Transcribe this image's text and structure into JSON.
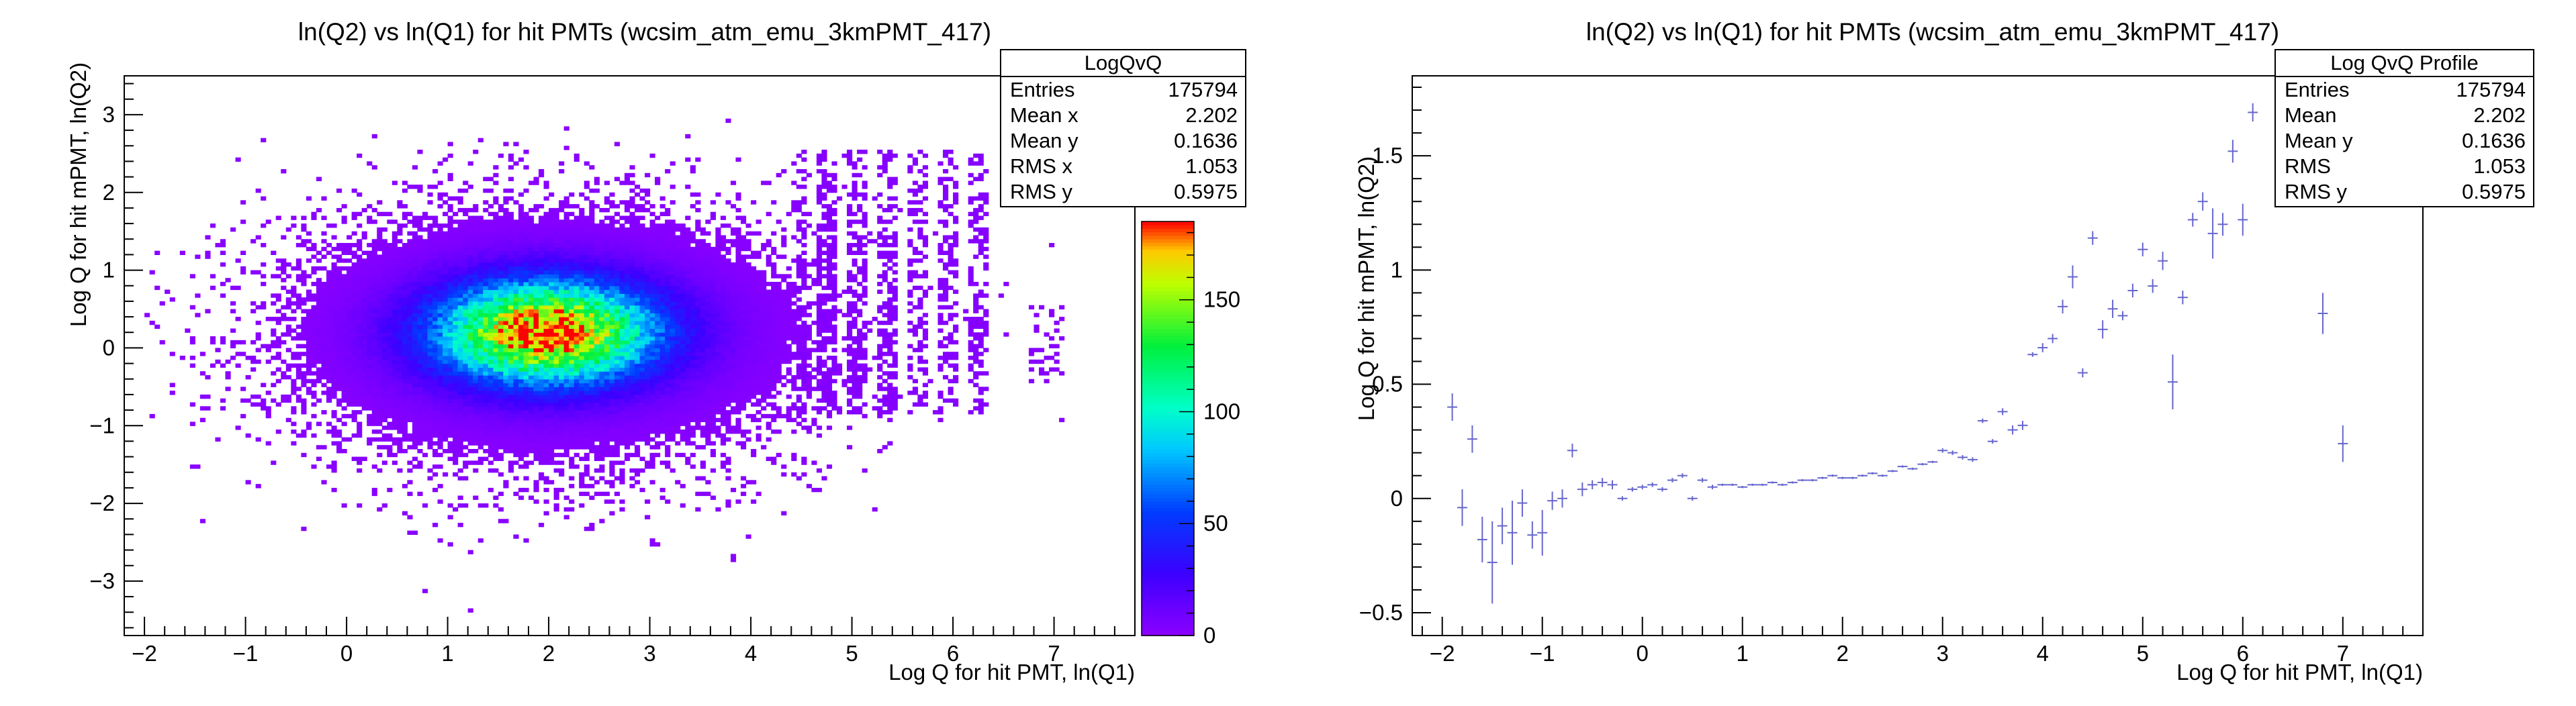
{
  "chart_data": [
    {
      "type": "heatmap",
      "title": "ln(Q2) vs ln(Q1) for hit PMTs (wcsim_atm_emu_3kmPMT_417)",
      "xlabel": "Log Q for hit PMT, ln(Q1)",
      "ylabel": "Log Q for hit mPMT, ln(Q2)",
      "xlim": [
        -2.2,
        7.8
      ],
      "ylim": [
        -3.7,
        3.5
      ],
      "x_ticks": [
        -2,
        -1,
        0,
        1,
        2,
        3,
        4,
        5,
        6,
        7
      ],
      "y_ticks": [
        -3,
        -2,
        -1,
        0,
        1,
        2,
        3
      ],
      "zlim": [
        0,
        185
      ],
      "z_ticks": [
        0,
        50,
        100,
        150
      ],
      "grid": false,
      "distribution": {
        "peak_x": 1.95,
        "peak_y": 0.18,
        "peak_count": 185,
        "sigma_x": 0.75,
        "sigma_y": 0.45,
        "note": "2D histogram of ln(Q2) vs ln(Q1); dense core near (2, 0.2), sparse vertical stripes at x≈4.5–6.2 spanning y≈-0.8 to 2.4, isolated bins near x≈6.8–7.0"
      },
      "stats_box": {
        "name": "LogQvQ",
        "rows": [
          {
            "label": "Entries",
            "value": "175794"
          },
          {
            "label": "Mean x",
            "value": "2.202"
          },
          {
            "label": "Mean y",
            "value": "0.1636"
          },
          {
            "label": "RMS x",
            "value": "1.053"
          },
          {
            "label": "RMS y",
            "value": "0.5975"
          }
        ]
      }
    },
    {
      "type": "scatter",
      "title": "ln(Q2) vs ln(Q1) for hit PMTs (wcsim_atm_emu_3kmPMT_417)",
      "xlabel": "Log Q for hit PMT, ln(Q1)",
      "ylabel": "Log Q for hit mPMT, ln(Q2)",
      "xlim": [
        -2.3,
        7.8
      ],
      "ylim": [
        -0.6,
        1.85
      ],
      "x_ticks": [
        -2,
        -1,
        0,
        1,
        2,
        3,
        4,
        5,
        6,
        7
      ],
      "y_ticks": [
        -0.5,
        0,
        0.5,
        1,
        1.5
      ],
      "grid": false,
      "color": "#6666cc",
      "x": [
        -1.9,
        -1.8,
        -1.7,
        -1.6,
        -1.5,
        -1.4,
        -1.3,
        -1.2,
        -1.1,
        -1.0,
        -0.9,
        -0.8,
        -0.7,
        -0.6,
        -0.5,
        -0.4,
        -0.3,
        -0.2,
        -0.1,
        0.0,
        0.1,
        0.2,
        0.3,
        0.4,
        0.5,
        0.6,
        0.7,
        0.8,
        0.9,
        1.0,
        1.1,
        1.2,
        1.3,
        1.4,
        1.5,
        1.6,
        1.7,
        1.8,
        1.9,
        2.0,
        2.1,
        2.2,
        2.3,
        2.4,
        2.5,
        2.6,
        2.7,
        2.8,
        2.9,
        3.0,
        3.1,
        3.2,
        3.3,
        3.4,
        3.5,
        3.6,
        3.7,
        3.8,
        3.9,
        4.0,
        4.1,
        4.2,
        4.3,
        4.4,
        4.5,
        4.6,
        4.7,
        4.8,
        4.9,
        5.0,
        5.1,
        5.2,
        5.3,
        5.4,
        5.5,
        5.6,
        5.7,
        5.8,
        5.9,
        6.0,
        6.1,
        6.8,
        7.0
      ],
      "y": [
        0.4,
        -0.04,
        0.26,
        -0.18,
        -0.28,
        -0.12,
        -0.15,
        -0.02,
        -0.16,
        -0.15,
        -0.01,
        0.0,
        0.21,
        0.04,
        0.06,
        0.07,
        0.06,
        0.0,
        0.04,
        0.05,
        0.06,
        0.04,
        0.08,
        0.1,
        0.0,
        0.08,
        0.05,
        0.06,
        0.06,
        0.05,
        0.06,
        0.06,
        0.07,
        0.06,
        0.07,
        0.08,
        0.08,
        0.09,
        0.1,
        0.09,
        0.09,
        0.1,
        0.11,
        0.1,
        0.12,
        0.14,
        0.13,
        0.15,
        0.16,
        0.21,
        0.2,
        0.18,
        0.17,
        0.34,
        0.25,
        0.38,
        0.3,
        0.32,
        0.63,
        0.66,
        0.7,
        0.84,
        0.97,
        0.55,
        1.14,
        0.74,
        0.83,
        0.8,
        0.91,
        1.09,
        0.93,
        1.04,
        0.51,
        0.88,
        1.22,
        1.3,
        1.16,
        1.2,
        1.52,
        1.22,
        1.69,
        0.81,
        0.24
      ],
      "yerr": [
        0.06,
        0.08,
        0.06,
        0.1,
        0.18,
        0.08,
        0.14,
        0.06,
        0.06,
        0.1,
        0.04,
        0.04,
        0.03,
        0.03,
        0.02,
        0.02,
        0.02,
        0.01,
        0.01,
        0.01,
        0.01,
        0.01,
        0.01,
        0.01,
        0.01,
        0.01,
        0.01,
        0.005,
        0.005,
        0.005,
        0.005,
        0.005,
        0.005,
        0.005,
        0.005,
        0.005,
        0.005,
        0.005,
        0.005,
        0.005,
        0.005,
        0.005,
        0.005,
        0.005,
        0.005,
        0.005,
        0.005,
        0.005,
        0.005,
        0.01,
        0.01,
        0.01,
        0.01,
        0.01,
        0.01,
        0.015,
        0.02,
        0.02,
        0.01,
        0.02,
        0.02,
        0.03,
        0.05,
        0.02,
        0.03,
        0.04,
        0.04,
        0.02,
        0.03,
        0.03,
        0.03,
        0.04,
        0.12,
        0.03,
        0.03,
        0.04,
        0.11,
        0.05,
        0.05,
        0.07,
        0.04,
        0.09,
        0.08
      ],
      "stats_box": {
        "name": "Log QvQ Profile",
        "rows": [
          {
            "label": "Entries",
            "value": "175794"
          },
          {
            "label": "Mean",
            "value": "2.202"
          },
          {
            "label": "Mean y",
            "value": "0.1636"
          },
          {
            "label": "RMS",
            "value": "1.053"
          },
          {
            "label": "RMS y",
            "value": "0.5975"
          }
        ]
      }
    }
  ]
}
